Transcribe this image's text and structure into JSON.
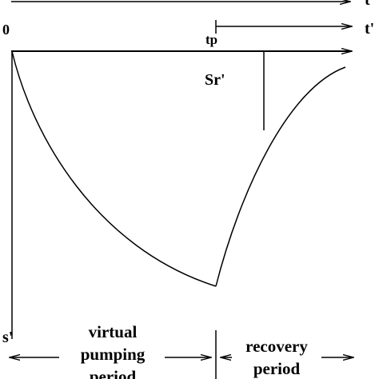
{
  "diagram": {
    "origin_label": "0",
    "axis_t_label": "t",
    "axis_t_prime_label": "t'",
    "tp_label": "tp",
    "sr_label": "Sr'",
    "s_axis_label": "s'",
    "virtual_period_label": [
      "virtual",
      "pumping",
      "period"
    ],
    "recovery_period_label": [
      "recovery",
      "period"
    ],
    "colors": {
      "ink": "#000000",
      "background": "#ffffff"
    }
  }
}
